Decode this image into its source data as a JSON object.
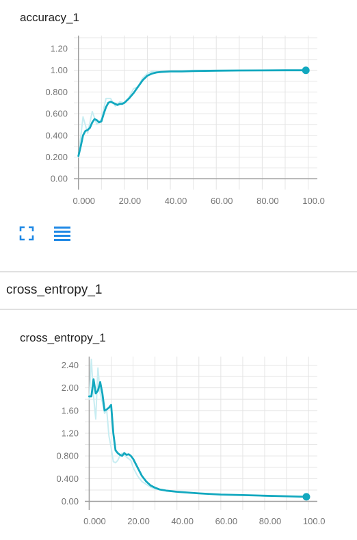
{
  "charts_section": {
    "header": "cross_entropy_1"
  },
  "colors": {
    "smoothed": "#12a8bf",
    "raw": "#c8edf2",
    "grid": "#e4e4e4",
    "axis": "#9e9e9e"
  },
  "toolbar": {
    "expand_icon": "fullscreen-icon",
    "list_icon": "list-icon"
  },
  "chart_data": [
    {
      "type": "line",
      "title": "accuracy_1",
      "xlim": [
        -2,
        104
      ],
      "ylim": [
        -0.1,
        1.32
      ],
      "x_ticks": [
        0,
        20,
        40,
        60,
        80,
        100
      ],
      "x_tick_labels": [
        "0.000",
        "20.00",
        "40.00",
        "60.00",
        "80.00",
        "100.0"
      ],
      "y_ticks": [
        0,
        0.2,
        0.4,
        0.6,
        0.8,
        1.0,
        1.2
      ],
      "y_tick_labels": [
        "0.00",
        "0.200",
        "0.400",
        "0.600",
        "0.800",
        "1.00",
        "1.20"
      ],
      "grid": true,
      "series": [
        {
          "role": "raw",
          "x": [
            0,
            2,
            4,
            6,
            8,
            10,
            12,
            14,
            16,
            18,
            20,
            22,
            24,
            26,
            28,
            30,
            32,
            34,
            36,
            40,
            50,
            60,
            70,
            80,
            90,
            99
          ],
          "y": [
            0.2,
            0.57,
            0.42,
            0.62,
            0.5,
            0.55,
            0.74,
            0.74,
            0.67,
            0.71,
            0.7,
            0.75,
            0.83,
            0.85,
            0.93,
            0.97,
            0.99,
            0.99,
            0.99,
            0.99,
            1.0,
            1.0,
            1.0,
            1.0,
            1.0,
            1.0
          ]
        },
        {
          "role": "smoothed",
          "x": [
            0,
            1,
            2,
            3,
            4,
            5,
            6,
            7,
            8,
            9,
            10,
            11,
            12,
            13,
            14,
            15,
            16,
            17,
            18,
            19,
            20,
            22,
            24,
            26,
            28,
            30,
            32,
            34,
            36,
            40,
            45,
            50,
            60,
            70,
            80,
            90,
            99
          ],
          "y": [
            0.21,
            0.3,
            0.4,
            0.44,
            0.45,
            0.47,
            0.52,
            0.55,
            0.54,
            0.52,
            0.53,
            0.6,
            0.66,
            0.7,
            0.71,
            0.7,
            0.69,
            0.68,
            0.69,
            0.69,
            0.7,
            0.74,
            0.79,
            0.85,
            0.91,
            0.95,
            0.97,
            0.98,
            0.985,
            0.99,
            0.99,
            0.993,
            0.996,
            0.998,
            0.999,
            1.0,
            1.0
          ]
        }
      ]
    },
    {
      "type": "line",
      "title": "cross_entropy_1",
      "xlim": [
        -2,
        104
      ],
      "ylim": [
        -0.15,
        2.55
      ],
      "x_ticks": [
        0,
        20,
        40,
        60,
        80,
        100
      ],
      "x_tick_labels": [
        "0.000",
        "20.00",
        "40.00",
        "60.00",
        "80.00",
        "100.0"
      ],
      "y_ticks": [
        0,
        0.4,
        0.8,
        1.2,
        1.6,
        2.0,
        2.4
      ],
      "y_tick_labels": [
        "0.00",
        "0.400",
        "0.800",
        "1.20",
        "1.60",
        "2.00",
        "2.40"
      ],
      "grid": true,
      "series": [
        {
          "role": "raw",
          "x": [
            0,
            1,
            2,
            3,
            4,
            5,
            6,
            7,
            8,
            9,
            10,
            11,
            12,
            13,
            14,
            15,
            16,
            17,
            18,
            19,
            20,
            22,
            24,
            26,
            28,
            30,
            35,
            40,
            50,
            60,
            70,
            80,
            90,
            99
          ],
          "y": [
            1.8,
            2.5,
            1.85,
            1.45,
            2.35,
            1.9,
            1.75,
            1.55,
            1.6,
            1.15,
            0.95,
            0.7,
            0.68,
            0.72,
            0.8,
            0.85,
            0.82,
            0.78,
            0.75,
            0.72,
            0.6,
            0.45,
            0.35,
            0.3,
            0.25,
            0.22,
            0.19,
            0.16,
            0.14,
            0.12,
            0.11,
            0.1,
            0.09,
            0.08
          ]
        },
        {
          "role": "smoothed",
          "x": [
            0,
            1,
            2,
            3,
            4,
            5,
            6,
            7,
            8,
            9,
            10,
            11,
            12,
            13,
            14,
            15,
            16,
            17,
            18,
            19,
            20,
            22,
            24,
            26,
            28,
            30,
            32,
            35,
            40,
            50,
            60,
            70,
            80,
            90,
            99
          ],
          "y": [
            1.85,
            1.85,
            2.15,
            1.9,
            1.95,
            2.1,
            1.9,
            1.6,
            1.62,
            1.65,
            1.7,
            1.2,
            0.9,
            0.85,
            0.82,
            0.8,
            0.85,
            0.82,
            0.83,
            0.8,
            0.75,
            0.6,
            0.45,
            0.35,
            0.28,
            0.24,
            0.21,
            0.19,
            0.17,
            0.14,
            0.12,
            0.11,
            0.1,
            0.09,
            0.08
          ]
        }
      ]
    }
  ]
}
